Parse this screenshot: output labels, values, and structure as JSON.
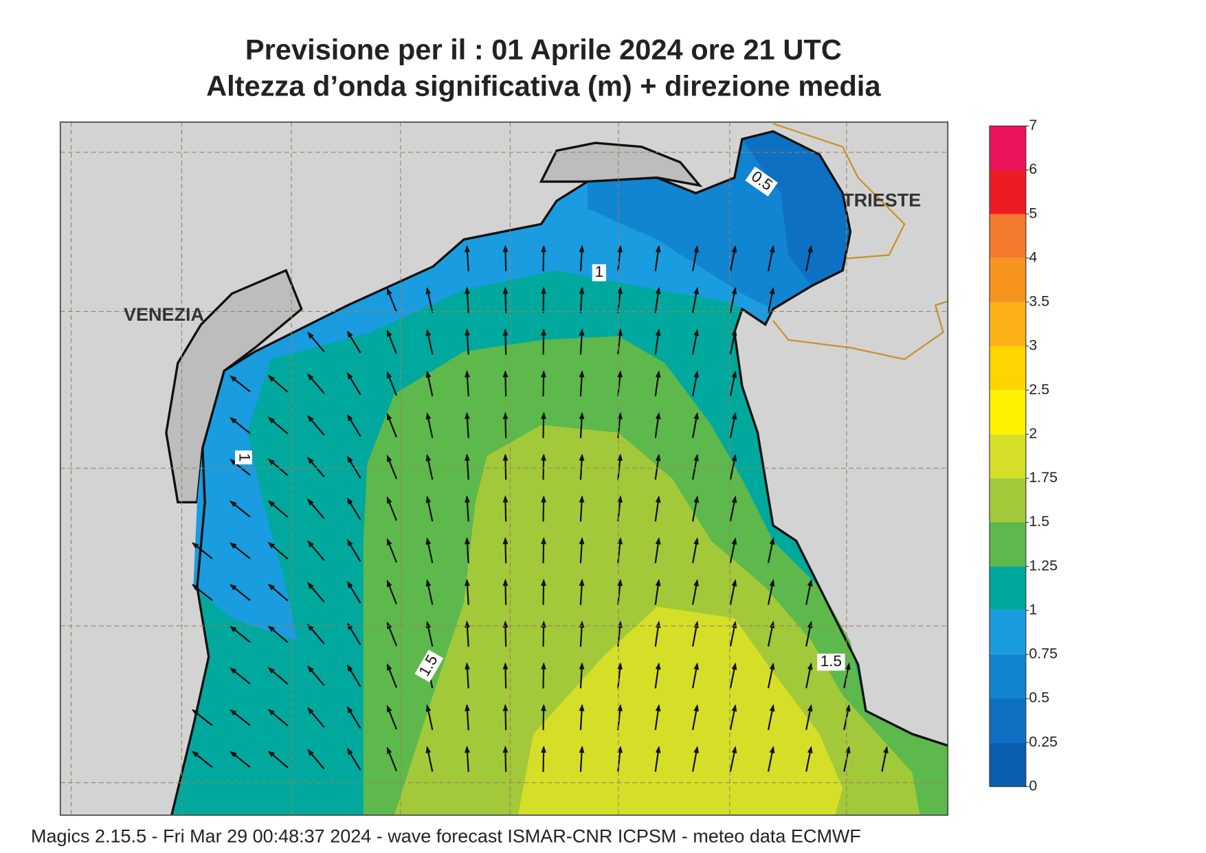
{
  "title": [
    "Previsione per il  :  01   Aprile  2024   ore 21 UTC",
    "Altezza d’onda significativa (m) + direzione media"
  ],
  "cities": [
    "VENEZIA",
    "TRIESTE"
  ],
  "contour_labels": [
    "0.5",
    "1",
    "1",
    "1.5",
    "1.5"
  ],
  "colorbar": {
    "ticks": [
      {
        "value": 0,
        "label": "0"
      },
      {
        "value": 1,
        "label": "0.25"
      },
      {
        "value": 2,
        "label": "0.5"
      },
      {
        "value": 3,
        "label": "0.75"
      },
      {
        "value": 4,
        "label": "1"
      },
      {
        "value": 5,
        "label": "1.25"
      },
      {
        "value": 6,
        "label": "1.5"
      },
      {
        "value": 7,
        "label": "1.75"
      },
      {
        "value": 8,
        "label": "2"
      },
      {
        "value": 9,
        "label": "2.5"
      },
      {
        "value": 10,
        "label": "3"
      },
      {
        "value": 11,
        "label": "3.5"
      },
      {
        "value": 12,
        "label": "4"
      },
      {
        "value": 13,
        "label": "5"
      },
      {
        "value": 14,
        "label": "6"
      },
      {
        "value": 15,
        "label": "7"
      }
    ],
    "colors": [
      "#0a5eb0",
      "#0d70c2",
      "#1184d2",
      "#1a9ce0",
      "#00a89e",
      "#5db94c",
      "#a2c93a",
      "#d5df28",
      "#fff200",
      "#ffd400",
      "#fbb117",
      "#f7941d",
      "#f37a2a",
      "#ed1c24",
      "#ec145b"
    ]
  },
  "footer": "Magics 2.15.5 - Fri Mar 29 00:48:37 2024 - wave forecast  ISMAR-CNR  ICPSM - meteo data    ECMWF"
}
